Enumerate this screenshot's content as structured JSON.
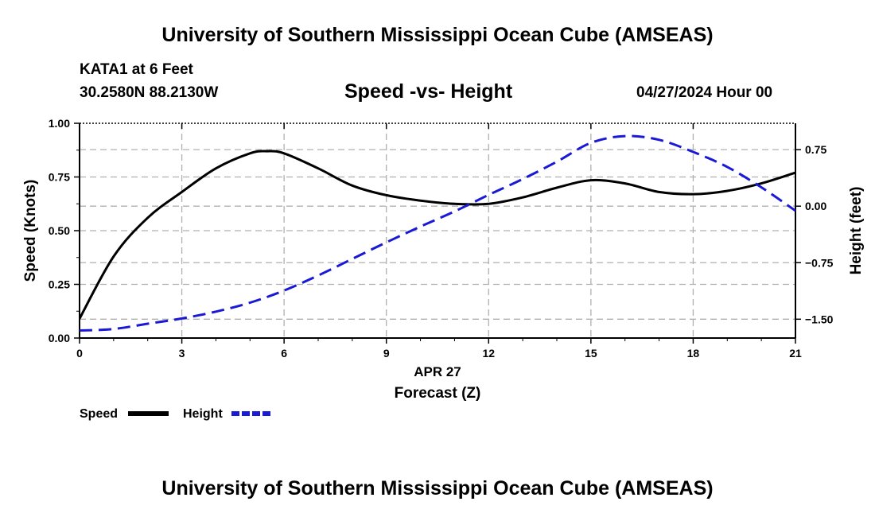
{
  "header": {
    "title": "University of Southern Mississippi Ocean Cube (AMSEAS)",
    "station": "KATA1 at 6 Feet",
    "coords": "30.2580N  88.2130W",
    "date": "04/27/2024 Hour 00"
  },
  "footer": {
    "title": "University of Southern Mississippi Ocean Cube (AMSEAS)"
  },
  "chart_data": {
    "type": "line",
    "title": "Speed -vs- Height",
    "xlabel_date": "APR 27",
    "xlabel": "Forecast (Z)",
    "ylabel_left": "Speed (Knots)",
    "ylabel_right": "Height (feet)",
    "xlim": [
      0,
      21
    ],
    "ylim_left": [
      0,
      1.0
    ],
    "ylim_right": [
      -1.75,
      1.1
    ],
    "x_ticks": [
      "0",
      "3",
      "6",
      "9",
      "12",
      "15",
      "18",
      "21"
    ],
    "y_left_ticks": [
      "0.00",
      "0.25",
      "0.50",
      "0.75",
      "1.00"
    ],
    "y_right_ticks": [
      "−1.50",
      "−0.75",
      "0.00",
      "0.75"
    ],
    "grid": true,
    "colors": {
      "speed": "#000000",
      "height": "#1a1ad6",
      "grid": "#b0b0b0"
    },
    "series": [
      {
        "name": "Speed",
        "axis": "left",
        "x": [
          0,
          1,
          2,
          3,
          4,
          5,
          5.5,
          6,
          7,
          8,
          9,
          10,
          11,
          12,
          13,
          14,
          15,
          16,
          17,
          18,
          19,
          20,
          21
        ],
        "values": [
          0.09,
          0.38,
          0.56,
          0.68,
          0.79,
          0.86,
          0.87,
          0.86,
          0.79,
          0.71,
          0.665,
          0.64,
          0.625,
          0.625,
          0.655,
          0.7,
          0.735,
          0.72,
          0.68,
          0.67,
          0.685,
          0.72,
          0.77
        ]
      },
      {
        "name": "Height",
        "axis": "right",
        "x": [
          0,
          1,
          2,
          3,
          4,
          5,
          6,
          7,
          8,
          9,
          10,
          11,
          12,
          13,
          14,
          15,
          16,
          17,
          18,
          19,
          20,
          21
        ],
        "values": [
          -1.65,
          -1.63,
          -1.56,
          -1.49,
          -1.4,
          -1.28,
          -1.12,
          -0.92,
          -0.7,
          -0.48,
          -0.27,
          -0.07,
          0.15,
          0.36,
          0.59,
          0.84,
          0.93,
          0.88,
          0.72,
          0.52,
          0.25,
          -0.06
        ]
      }
    ]
  },
  "legend": {
    "speed_label": "Speed",
    "height_label": "Height"
  }
}
